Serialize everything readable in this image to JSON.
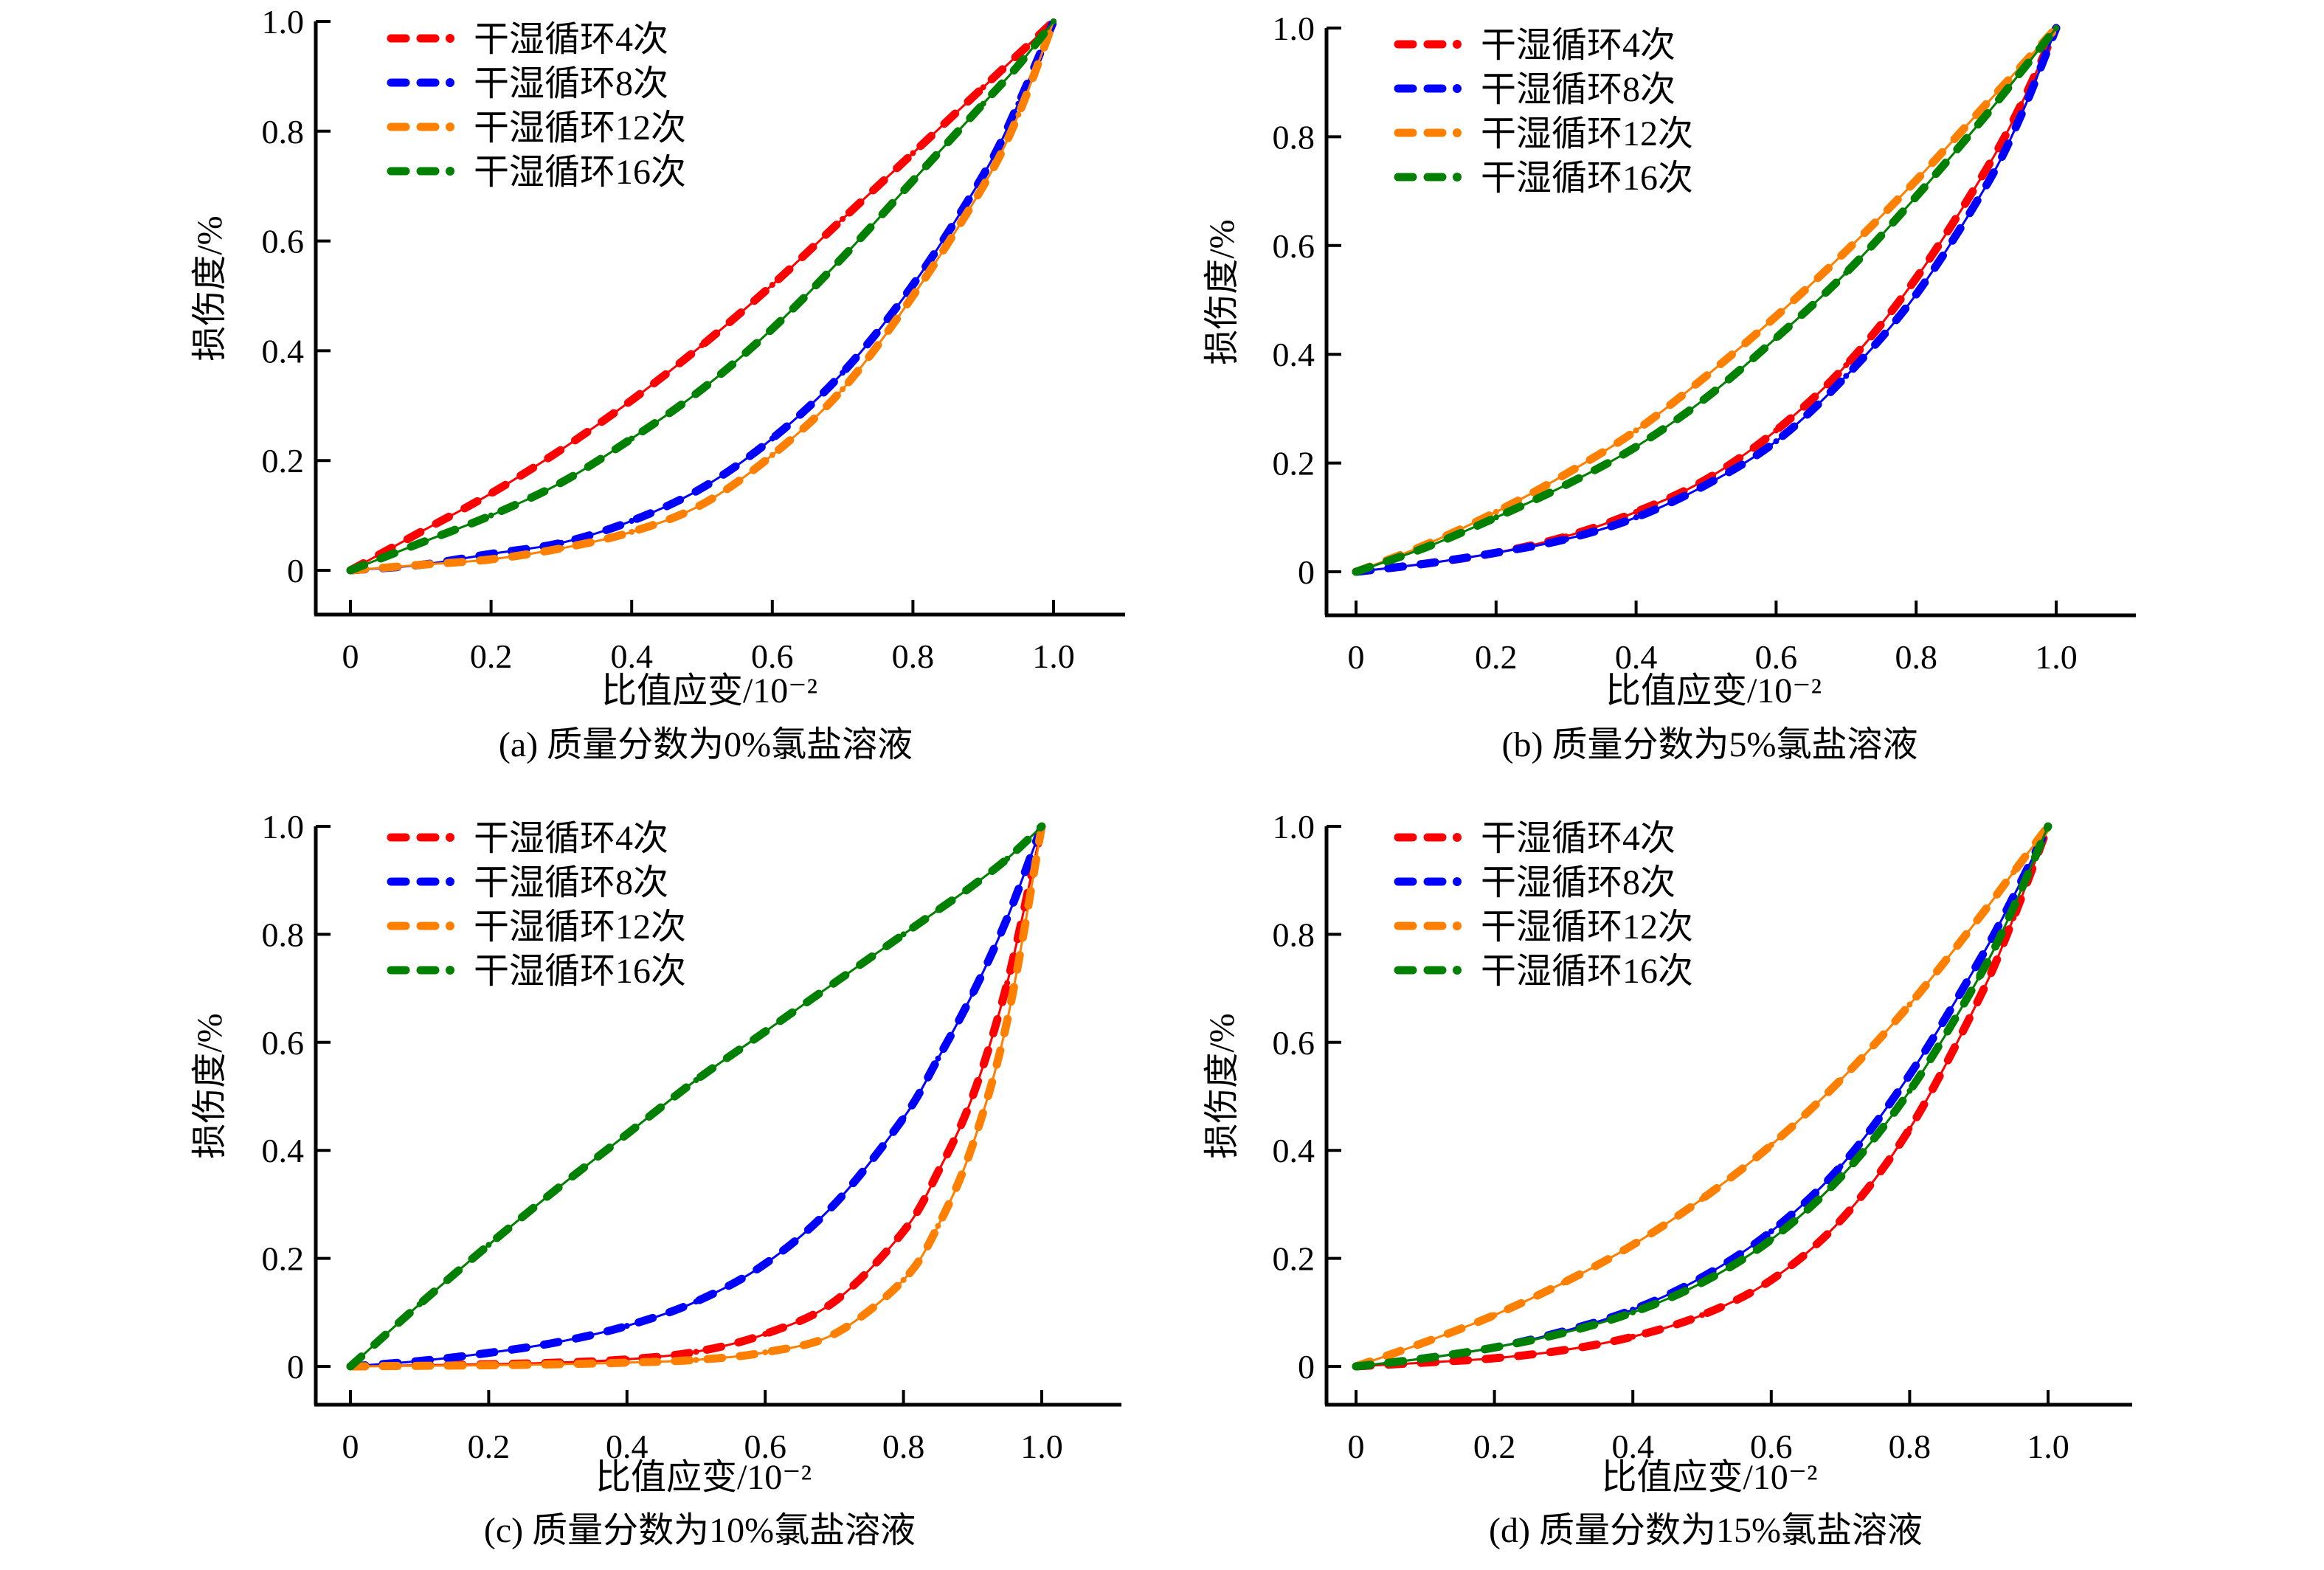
{
  "chart_data": [
    {
      "type": "line",
      "panel": "a",
      "caption": "(a) 质量分数为0%氯盐溶液",
      "xlabel": "比值应变/10⁻²",
      "ylabel": "损伤度/%",
      "xlim": [
        -0.05,
        1.1
      ],
      "ylim": [
        -0.08,
        1.0
      ],
      "xticks": [
        "0",
        "0.2",
        "0.4",
        "0.6",
        "0.8",
        "1.0"
      ],
      "xtick_values": [
        0,
        0.2,
        0.4,
        0.6,
        0.8,
        1.0
      ],
      "yticks": [
        "0",
        "0.2",
        "0.4",
        "0.6",
        "0.8",
        "1.0"
      ],
      "ytick_values": [
        0,
        0.2,
        0.4,
        0.6,
        0.8,
        1.0
      ],
      "grid": false,
      "legend_position": "top-left",
      "x": [
        0,
        0.1,
        0.2,
        0.3,
        0.4,
        0.5,
        0.6,
        0.7,
        0.8,
        0.9,
        0.95,
        1.0
      ],
      "series": [
        {
          "name": "干湿循环4次",
          "color": "#ff0000",
          "values": [
            0,
            0.07,
            0.14,
            0.22,
            0.31,
            0.41,
            0.52,
            0.64,
            0.76,
            0.88,
            0.94,
            1.0
          ]
        },
        {
          "name": "干湿循环8次",
          "color": "#0000ff",
          "values": [
            0,
            0.01,
            0.03,
            0.05,
            0.09,
            0.15,
            0.24,
            0.36,
            0.52,
            0.72,
            0.85,
            1.0
          ]
        },
        {
          "name": "干湿循环12次",
          "color": "#ff8000",
          "values": [
            0,
            0.01,
            0.02,
            0.04,
            0.07,
            0.12,
            0.21,
            0.33,
            0.5,
            0.7,
            0.83,
            1.0
          ]
        },
        {
          "name": "干湿循环16次",
          "color": "#008000",
          "values": [
            0,
            0.05,
            0.1,
            0.16,
            0.24,
            0.33,
            0.44,
            0.57,
            0.71,
            0.85,
            0.92,
            1.0
          ]
        }
      ]
    },
    {
      "type": "line",
      "panel": "b",
      "caption": "(b) 质量分数为5%氯盐溶液",
      "xlabel": "比值应变/10⁻²",
      "ylabel": "损伤度/%",
      "xlim": [
        -0.05,
        1.1
      ],
      "ylim": [
        -0.08,
        1.0
      ],
      "xticks": [
        "0",
        "0.2",
        "0.4",
        "0.6",
        "0.8",
        "1.0"
      ],
      "xtick_values": [
        0,
        0.2,
        0.4,
        0.6,
        0.8,
        1.0
      ],
      "yticks": [
        "0",
        "0.2",
        "0.4",
        "0.6",
        "0.8",
        "1.0"
      ],
      "ytick_values": [
        0,
        0.2,
        0.4,
        0.6,
        0.8,
        1.0
      ],
      "grid": false,
      "legend_position": "top-left",
      "x": [
        0,
        0.1,
        0.2,
        0.3,
        0.4,
        0.5,
        0.6,
        0.7,
        0.8,
        0.9,
        0.95,
        1.0
      ],
      "series": [
        {
          "name": "干湿循环4次",
          "color": "#ff0000",
          "values": [
            0,
            0.015,
            0.035,
            0.065,
            0.11,
            0.17,
            0.26,
            0.38,
            0.54,
            0.74,
            0.86,
            1.0
          ]
        },
        {
          "name": "干湿循环8次",
          "color": "#0000ff",
          "values": [
            0,
            0.015,
            0.035,
            0.06,
            0.1,
            0.16,
            0.24,
            0.36,
            0.51,
            0.71,
            0.84,
            1.0
          ]
        },
        {
          "name": "干湿循环12次",
          "color": "#ff8000",
          "values": [
            0,
            0.05,
            0.11,
            0.18,
            0.26,
            0.36,
            0.47,
            0.59,
            0.72,
            0.86,
            0.93,
            1.0
          ]
        },
        {
          "name": "干湿循环16次",
          "color": "#008000",
          "values": [
            0,
            0.045,
            0.1,
            0.16,
            0.23,
            0.32,
            0.43,
            0.55,
            0.69,
            0.84,
            0.92,
            1.0
          ]
        }
      ]
    },
    {
      "type": "line",
      "panel": "c",
      "caption": "(c) 质量分数为10%氯盐溶液",
      "xlabel": "比值应变/10⁻²",
      "ylabel": "损伤度/%",
      "xlim": [
        -0.05,
        1.1
      ],
      "ylim": [
        -0.08,
        1.0
      ],
      "xticks": [
        "0",
        "0.2",
        "0.4",
        "0.6",
        "0.8",
        "1.0"
      ],
      "xtick_values": [
        0,
        0.2,
        0.4,
        0.6,
        0.8,
        1.0
      ],
      "yticks": [
        "0",
        "0.2",
        "0.4",
        "0.6",
        "0.8",
        "1.0"
      ],
      "ytick_values": [
        0,
        0.2,
        0.4,
        0.6,
        0.8,
        1.0
      ],
      "grid": false,
      "legend_position": "top-left",
      "x": [
        0,
        0.1,
        0.2,
        0.3,
        0.4,
        0.5,
        0.6,
        0.7,
        0.8,
        0.85,
        0.9,
        0.95,
        1.0
      ],
      "series": [
        {
          "name": "干湿循环4次",
          "color": "#ff0000",
          "values": [
            0,
            0.002,
            0.004,
            0.007,
            0.013,
            0.027,
            0.06,
            0.12,
            0.25,
            0.36,
            0.5,
            0.71,
            1.0
          ]
        },
        {
          "name": "干湿循环8次",
          "color": "#0000ff",
          "values": [
            0,
            0.01,
            0.025,
            0.045,
            0.075,
            0.12,
            0.19,
            0.3,
            0.46,
            0.57,
            0.69,
            0.83,
            1.0
          ]
        },
        {
          "name": "干湿循环12次",
          "color": "#ff8000",
          "values": [
            0,
            0.001,
            0.002,
            0.004,
            0.007,
            0.012,
            0.026,
            0.06,
            0.16,
            0.26,
            0.41,
            0.64,
            1.0
          ]
        },
        {
          "name": "干湿循环16次",
          "color": "#008000",
          "values": [
            0,
            0.115,
            0.225,
            0.33,
            0.43,
            0.53,
            0.62,
            0.71,
            0.8,
            0.845,
            0.89,
            0.94,
            1.0
          ]
        }
      ]
    },
    {
      "type": "line",
      "panel": "d",
      "caption": "(d) 质量分数为15%氯盐溶液",
      "xlabel": "比值应变/10⁻²",
      "ylabel": "损伤度/%",
      "xlim": [
        -0.05,
        1.1
      ],
      "ylim": [
        -0.08,
        1.0
      ],
      "xticks": [
        "0",
        "0.2",
        "0.4",
        "0.6",
        "0.8",
        "1.0"
      ],
      "xtick_values": [
        0,
        0.2,
        0.4,
        0.6,
        0.8,
        1.0
      ],
      "yticks": [
        "0",
        "0.2",
        "0.4",
        "0.6",
        "0.8",
        "1.0"
      ],
      "ytick_values": [
        0,
        0.2,
        0.4,
        0.6,
        0.8,
        1.0
      ],
      "grid": false,
      "legend_position": "top-left",
      "x": [
        0,
        0.1,
        0.2,
        0.3,
        0.4,
        0.5,
        0.6,
        0.7,
        0.8,
        0.9,
        0.95,
        1.0
      ],
      "series": [
        {
          "name": "干湿循环4次",
          "color": "#ff0000",
          "values": [
            0,
            0.007,
            0.015,
            0.03,
            0.055,
            0.095,
            0.16,
            0.27,
            0.44,
            0.68,
            0.83,
            1.0
          ]
        },
        {
          "name": "干湿循环8次",
          "color": "#0000ff",
          "values": [
            0,
            0.015,
            0.035,
            0.065,
            0.105,
            0.165,
            0.25,
            0.37,
            0.54,
            0.75,
            0.87,
            1.0
          ]
        },
        {
          "name": "干湿循环12次",
          "color": "#ff8000",
          "values": [
            0,
            0.045,
            0.095,
            0.155,
            0.225,
            0.31,
            0.41,
            0.53,
            0.67,
            0.83,
            0.915,
            1.0
          ]
        },
        {
          "name": "干湿循环16次",
          "color": "#008000",
          "values": [
            0,
            0.015,
            0.035,
            0.062,
            0.1,
            0.155,
            0.235,
            0.35,
            0.51,
            0.72,
            0.85,
            1.0
          ]
        }
      ]
    }
  ]
}
